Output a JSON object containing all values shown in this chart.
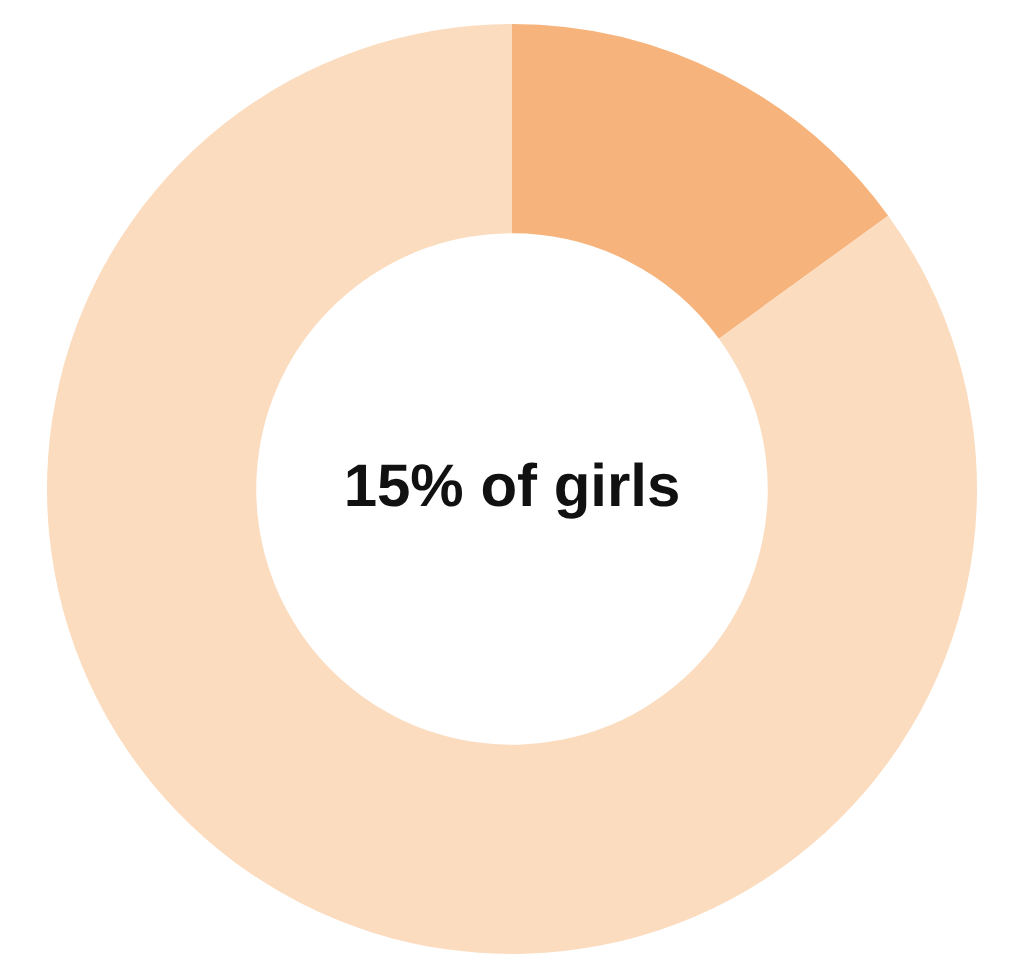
{
  "chart_data": {
    "type": "donut",
    "categories": [
      null,
      null
    ],
    "values": [
      15,
      85
    ],
    "colors": [
      "#f6b47c",
      "#fcdcbf"
    ],
    "annotations": [
      "15% of girls"
    ],
    "legend": false
  }
}
